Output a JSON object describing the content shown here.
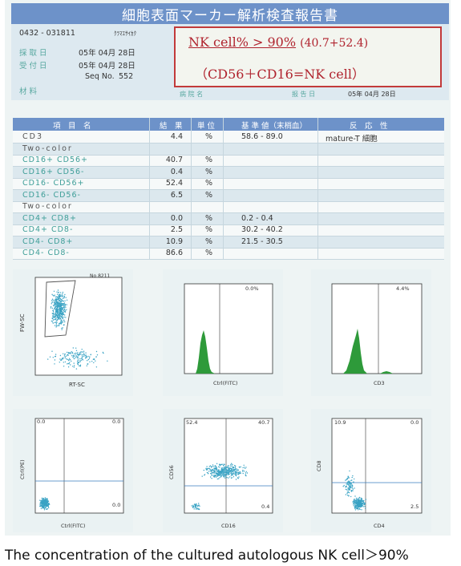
{
  "report_title": "細胞表面マーカー解析検査報告書",
  "header": {
    "id": "0432 - 031811",
    "name": "ｸﾗﾏｴｻｲｶｸ",
    "sample_label": "採 取 日",
    "sample_date": "05年 04月 28日",
    "receive_label": "受 付 日",
    "receive_date": "05年 04月 28日",
    "seq_label": "Seq No.",
    "seq_no": "552",
    "material_label": "材 料",
    "hospital_label": "病 院 名",
    "report_label": "报 告 日",
    "report_date": "05年 04月 28日"
  },
  "highlight": {
    "line1_main": "NK cell% > 90%",
    "line1_calc": "(40.7+52.4)",
    "line2": "（CD56＋CD16=NK cell）"
  },
  "table": {
    "headers": [
      "項　目　名",
      "結　果",
      "単 位",
      "基 準 値（末梢血）",
      "反　応　性"
    ],
    "rows": [
      {
        "name": "CD3",
        "value": "4.4",
        "unit": "%",
        "ref": "58.6 - 89.0",
        "reactivity": "mature-T 細胞",
        "style": "gray"
      },
      {
        "name": "Two-color",
        "value": "",
        "unit": "",
        "ref": "",
        "reactivity": "",
        "style": "gray"
      },
      {
        "name": "CD16+ CD56+",
        "value": "40.7",
        "unit": "%",
        "ref": "",
        "reactivity": "",
        "style": "teal"
      },
      {
        "name": "CD16+ CD56-",
        "value": "0.4",
        "unit": "%",
        "ref": "",
        "reactivity": "",
        "style": "teal"
      },
      {
        "name": "CD16- CD56+",
        "value": "52.4",
        "unit": "%",
        "ref": "",
        "reactivity": "",
        "style": "teal"
      },
      {
        "name": "CD16- CD56-",
        "value": "6.5",
        "unit": "%",
        "ref": "",
        "reactivity": "",
        "style": "teal"
      },
      {
        "name": "Two-color",
        "value": "",
        "unit": "",
        "ref": "",
        "reactivity": "",
        "style": "gray"
      },
      {
        "name": "CD4+ CD8+",
        "value": "0.0",
        "unit": "%",
        "ref": "0.2 - 0.4",
        "reactivity": "",
        "style": "teal"
      },
      {
        "name": "CD4+ CD8-",
        "value": "2.5",
        "unit": "%",
        "ref": "30.2 - 40.2",
        "reactivity": "",
        "style": "teal"
      },
      {
        "name": "CD4- CD8+",
        "value": "10.9",
        "unit": "%",
        "ref": "21.5 - 30.5",
        "reactivity": "",
        "style": "teal"
      },
      {
        "name": "CD4- CD8-",
        "value": "86.6",
        "unit": "%",
        "ref": "",
        "reactivity": "",
        "style": "teal"
      }
    ]
  },
  "plots": {
    "scatter1": {
      "no": "No 8211",
      "ylabel": "FW-SC",
      "xlabel": "RT-SC"
    },
    "hist1": {
      "pct": "0.0%",
      "xlabel": "Ctrl(FITC)"
    },
    "hist2": {
      "pct": "4.4%",
      "xlabel": "CD3"
    },
    "quad1": {
      "tl": "0.0",
      "tr": "0.0",
      "br": "0.0",
      "ylabel": "Ctrl(PE)",
      "xlabel": "Ctrl(FITC)"
    },
    "quad2": {
      "tl": "52.4",
      "tr": "40.7",
      "br": "0.4",
      "ylabel": "CD56",
      "xlabel": "CD16"
    },
    "quad3": {
      "tl": "10.9",
      "tr": "0.0",
      "br": "2.5",
      "ylabel": "CD8",
      "xlabel": "CD4"
    }
  },
  "caption": "The concentration of the cultured autologous NK cell＞90%",
  "colors": {
    "accent": "#6d92c9",
    "highlight_red": "#b0232e",
    "dots": "#3aa3c4",
    "hist": "#2e9a3a"
  }
}
